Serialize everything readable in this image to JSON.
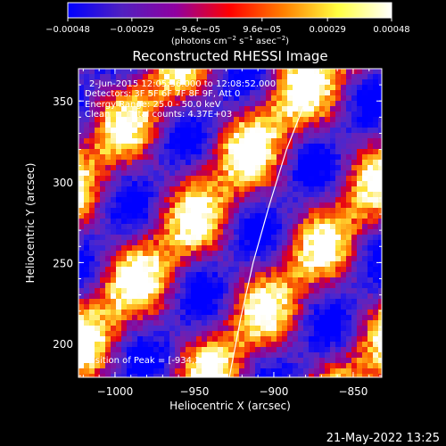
{
  "chart_data": {
    "type": "heatmap",
    "title": "Reconstructed RHESSI Image",
    "xlabel": "Heliocentric X (arcsec)",
    "ylabel": "Heliocentric Y (arcsec)",
    "xlim": [
      -1023,
      -832
    ],
    "ylim": [
      179,
      370
    ],
    "x_ticks": [
      -1000,
      -950,
      -900,
      -850
    ],
    "x_tick_labels": [
      "−1000",
      "−950",
      "−900",
      "−850"
    ],
    "y_ticks": [
      200,
      250,
      300,
      350
    ],
    "y_tick_labels": [
      "200",
      "250",
      "300",
      "350"
    ],
    "colorbar": {
      "tick_values": [
        -0.00048,
        -0.00029,
        -9.6e-05,
        9.6e-05,
        0.00029,
        0.00048
      ],
      "tick_labels": [
        "−0.00048",
        "−0.00029",
        "−9.6e−05",
        "9.6e−05",
        "0.00029",
        "0.00048"
      ],
      "range": [
        -0.00048,
        0.00048
      ],
      "unit_parts": [
        "(photons cm",
        "−2",
        " s",
        "−1",
        " asec",
        "−2",
        ")"
      ],
      "colors": [
        "#0000ff",
        "#5020c0",
        "#9000a0",
        "#ff0000",
        "#ff8000",
        "#ffff40",
        "#ffffff"
      ]
    },
    "annotations": [
      "2-Jun-2015 12:05:56.000 to 12:08:52.000",
      "Detectors: 3F 5F 6F 7F 8F 9F, Att 0",
      "Energy Range: 25.0 - 50.0 keV",
      "Clean",
      "Total counts: 4.37E+03"
    ],
    "peak_label": "Position of Peak = [-934,284]",
    "peak": [
      -934,
      284
    ],
    "limb_curve_xy": [
      [
        -928,
        179
      ],
      [
        -921,
        215
      ],
      [
        -913,
        250
      ],
      [
        -903,
        285
      ],
      [
        -892,
        320
      ],
      [
        -880,
        350
      ],
      [
        -872,
        370
      ]
    ]
  },
  "footer": {
    "timestamp": "21-May-2022 13:25"
  }
}
